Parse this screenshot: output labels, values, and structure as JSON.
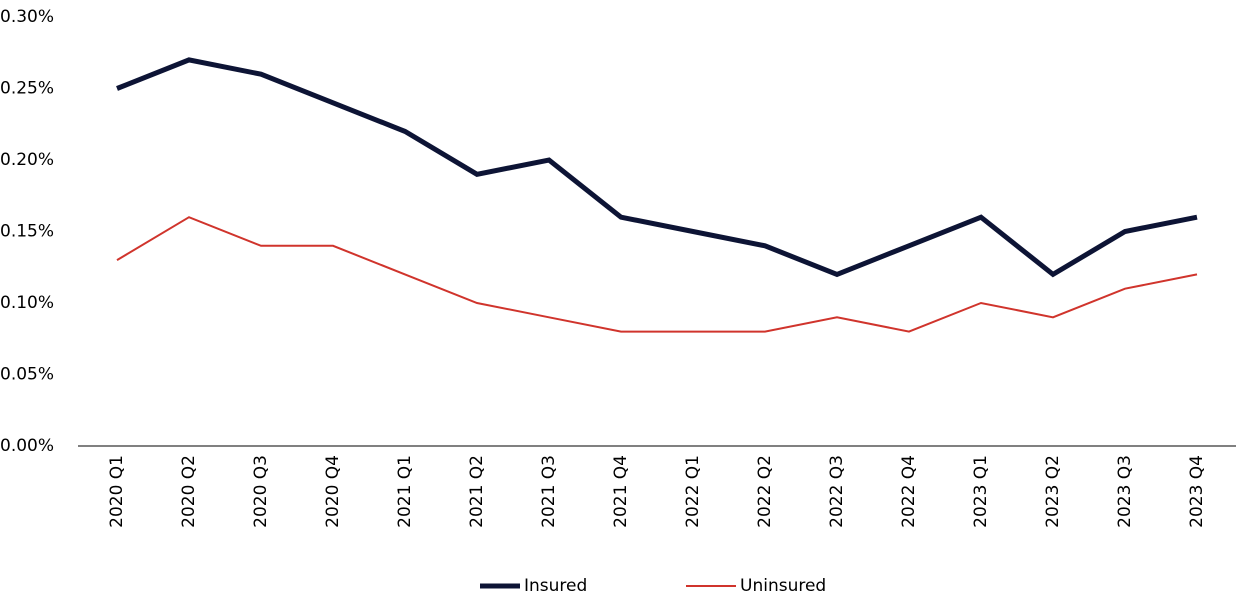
{
  "chart_data": {
    "type": "line",
    "categories": [
      "2020 Q1",
      "2020 Q2",
      "2020 Q3",
      "2020 Q4",
      "2021 Q1",
      "2021 Q2",
      "2021 Q3",
      "2021 Q4",
      "2022 Q1",
      "2022 Q2",
      "2022 Q3",
      "2022 Q4",
      "2023 Q1",
      "2023 Q2",
      "2023 Q3",
      "2023 Q4"
    ],
    "series": [
      {
        "name": "Insured",
        "color": "#0d1435",
        "values": [
          0.25,
          0.27,
          0.26,
          0.24,
          0.22,
          0.19,
          0.2,
          0.16,
          0.15,
          0.14,
          0.12,
          0.14,
          0.16,
          0.12,
          0.15,
          0.16
        ]
      },
      {
        "name": "Uninsured",
        "color": "#d0342c",
        "values": [
          0.13,
          0.16,
          0.14,
          0.14,
          0.12,
          0.1,
          0.09,
          0.08,
          0.08,
          0.08,
          0.09,
          0.08,
          0.1,
          0.09,
          0.11,
          0.12
        ]
      }
    ],
    "ylim": [
      0,
      0.3
    ],
    "yticks": [
      {
        "value": 0,
        "label": "0.00%"
      },
      {
        "value": 0.05,
        "label": "0.05%"
      },
      {
        "value": 0.1,
        "label": "0.10%"
      },
      {
        "value": 0.15,
        "label": "0.15%"
      },
      {
        "value": 0.2,
        "label": "0.20%"
      },
      {
        "value": 0.25,
        "label": "0.25%"
      },
      {
        "value": 0.3,
        "label": "0.30%"
      }
    ],
    "grid": false,
    "legend": "bottom"
  }
}
